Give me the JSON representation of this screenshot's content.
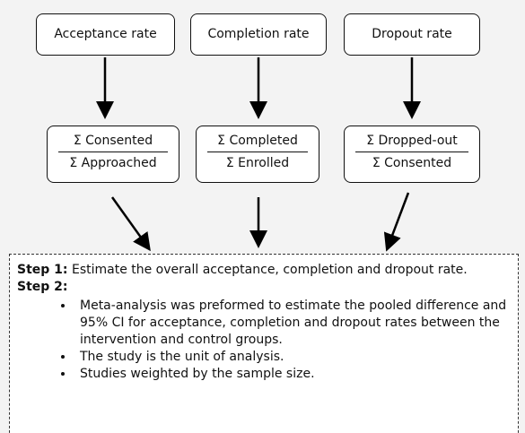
{
  "nodes": [
    {
      "label": "Acceptance rate",
      "numerator": "Σ Consented",
      "denominator": "Σ Approached"
    },
    {
      "label": "Completion rate",
      "numerator": "Σ Completed",
      "denominator": "Σ Enrolled"
    },
    {
      "label": "Dropout rate",
      "numerator": "Σ Dropped-out",
      "denominator": "Σ Consented"
    }
  ],
  "steps": [
    {
      "label": "Step 1:",
      "text": "Estimate the overall acceptance, completion and dropout rate."
    },
    {
      "label": "Step 2:",
      "text": ""
    }
  ],
  "bullets": [
    "Meta-analysis was preformed to estimate the pooled difference and 95% CI for acceptance, completion and dropout rates between the intervention and control groups.",
    "The study is the unit of analysis.",
    "Studies weighted by the sample size."
  ]
}
